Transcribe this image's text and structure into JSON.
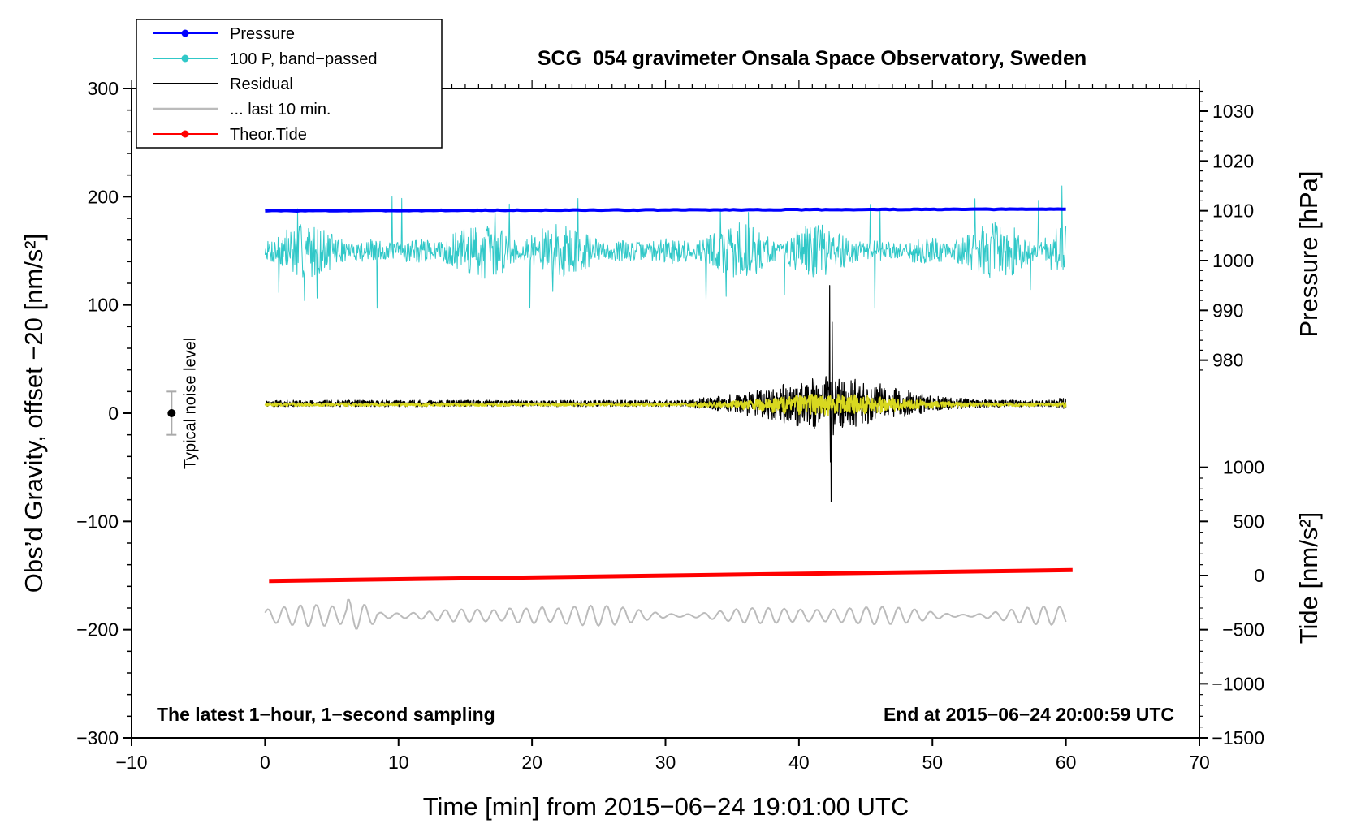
{
  "chart_data": {
    "type": "line",
    "title": "SCG_054 gravimeter Onsala Space Observatory, Sweden",
    "xlabel": "Time [min] from 2015−06−24 19:01:00 UTC",
    "ylabel": "Obs’d Gravity, offset −20 [nm/s²]",
    "y_right_pressure_label": "Pressure [hPa]",
    "y_right_tide_label": "Tide [nm/s²]",
    "xlim": [
      -10,
      70
    ],
    "ylim": [
      -300,
      300
    ],
    "x_ticks": [
      -10,
      0,
      10,
      20,
      30,
      40,
      50,
      60,
      70
    ],
    "x_tick_labels": [
      "−10",
      "0",
      "10",
      "20",
      "30",
      "40",
      "50",
      "60",
      "70"
    ],
    "y_ticks": [
      300,
      200,
      100,
      0,
      -100,
      -200,
      -300
    ],
    "y_tick_labels": [
      "300",
      "200",
      "100",
      "0",
      "−100",
      "−200",
      "−300"
    ],
    "pressure_axis": {
      "ticks": [
        1030,
        1020,
        1010,
        1000,
        990,
        980
      ],
      "tick_labels": [
        "1030",
        "1020",
        "1010",
        "1000",
        "990",
        "980"
      ],
      "ref_pressure": 1010,
      "ref_gravity": 187,
      "gravity_per_hpa": 4.6
    },
    "tide_axis": {
      "ticks": [
        1000,
        500,
        0,
        -500,
        -1000,
        -1500
      ],
      "tick_labels": [
        "1000",
        "500",
        "0",
        "−500",
        "−1000",
        "−1500"
      ],
      "ref_tide": 0,
      "ref_gravity": -150,
      "gravity_per_unit": 0.1
    },
    "legend": {
      "position": "top-left",
      "entries": [
        {
          "label": "Pressure",
          "color": "#0000ff",
          "marker": true
        },
        {
          "label": "100 P, band−passed",
          "color": "#30c8c8",
          "marker": true
        },
        {
          "label": "Residual",
          "color": "#000000",
          "marker": false
        },
        {
          "label": "... last 10 min.",
          "color": "#bbbbbb",
          "marker": false
        },
        {
          "label": "Theor.Tide",
          "color": "#ff0000",
          "marker": true
        }
      ]
    },
    "noise_level": {
      "label": "Typical noise level",
      "x": -7,
      "center": 0,
      "low": -20,
      "high": 20
    },
    "annotations": {
      "left": "The latest 1−hour, 1−second sampling",
      "right": "End at 2015−06−24 20:00:59 UTC"
    },
    "series": [
      {
        "name": "Pressure",
        "color": "#0000ff",
        "x_range": [
          0,
          60
        ],
        "start": 187,
        "end": 188.5,
        "amplitude": 0.6,
        "seed": 3
      },
      {
        "name": "100 P, band−passed",
        "color": "#30c8c8",
        "x_range": [
          0,
          60
        ],
        "center": 150,
        "amplitude": 28,
        "peaks_to": [
          97,
          210
        ],
        "seed": 7
      },
      {
        "name": "Residual",
        "color": "#000000",
        "x_range": [
          0,
          60
        ],
        "center": 9,
        "quiet_amplitude": 3,
        "event_start": 32,
        "event_peak": 42.3,
        "event_amplitude": 22,
        "peak_range": [
          -82,
          118
        ],
        "seed": 11
      },
      {
        "name": "Residual filtered",
        "color": "#d8d820",
        "x_range": [
          0,
          60
        ],
        "center": 8,
        "quiet_amplitude": 1.5,
        "event_start": 32,
        "event_peak": 42.3,
        "event_amplitude": 9,
        "seed": 13
      },
      {
        "name": "Theor.Tide",
        "color": "#ff0000",
        "x_range": [
          0.3,
          60.5
        ],
        "start": -155,
        "end": -145
      },
      {
        "name": "... last 10 min.",
        "color": "#bbbbbb",
        "x_range": [
          0,
          60
        ],
        "center": -187,
        "amplitude": 10,
        "peak_range": [
          -210,
          -165
        ],
        "seed": 19
      }
    ]
  }
}
